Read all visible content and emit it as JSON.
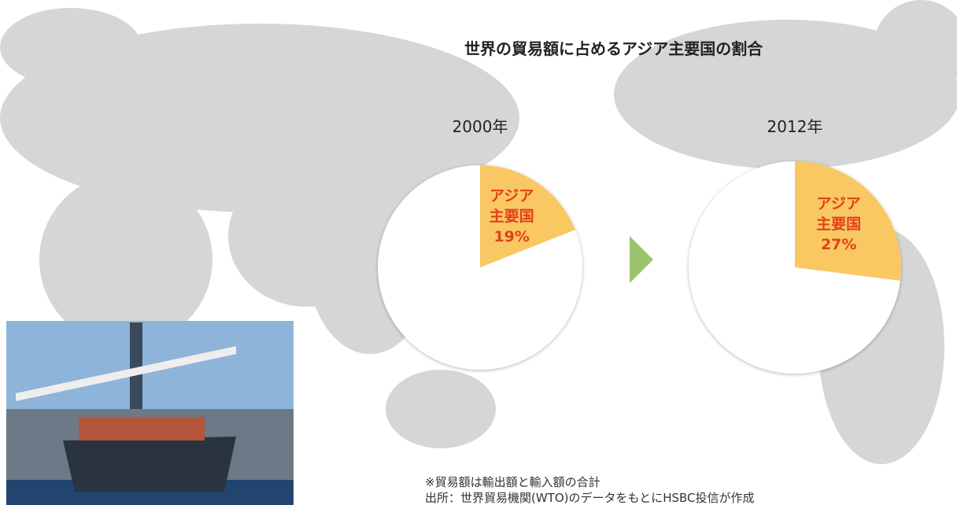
{
  "title": "世界の貿易額に占めるアジア主要国の割合",
  "chart_data": [
    {
      "type": "pie",
      "title": "2000年",
      "categories": [
        "アジア主要国"
      ],
      "values": [
        19
      ],
      "value_labels": [
        "19%"
      ],
      "color": "#f9c862"
    },
    {
      "type": "pie",
      "title": "2012年",
      "categories": [
        "アジア主要国"
      ],
      "values": [
        27
      ],
      "value_labels": [
        "27%"
      ],
      "color": "#f9c862"
    }
  ],
  "notes": [
    "※貿易額は輸出額と輸入額の合計",
    "出所：世界貿易機関(WTO)のデータをもとにHSBC投信が作成"
  ]
}
